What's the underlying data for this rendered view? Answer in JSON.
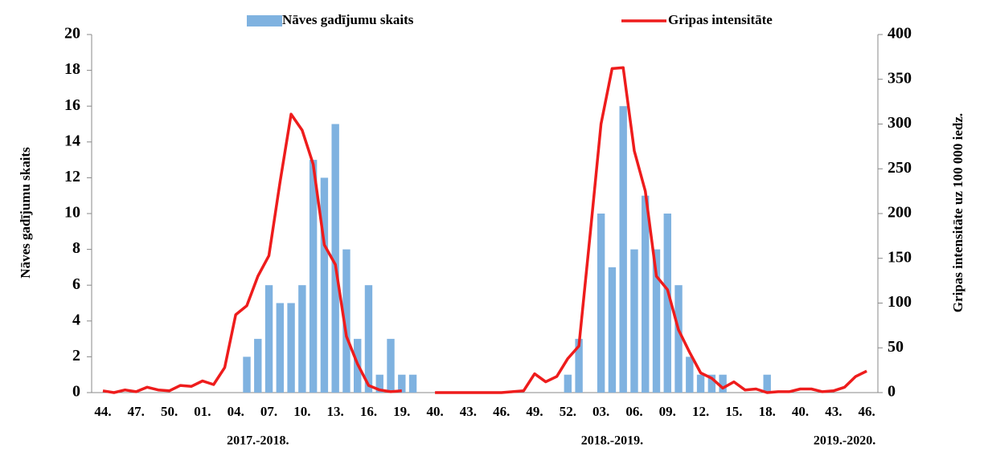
{
  "chart_data": {
    "type": "bar-line",
    "categories": [
      "44.",
      null,
      null,
      "47.",
      null,
      null,
      "50.",
      null,
      null,
      "01.",
      null,
      null,
      "04.",
      null,
      null,
      "07.",
      null,
      null,
      "10.",
      null,
      null,
      "13.",
      null,
      null,
      "16.",
      null,
      null,
      "19.",
      null,
      null,
      "40.",
      null,
      null,
      "43.",
      null,
      null,
      "46.",
      null,
      null,
      "49.",
      null,
      null,
      "52.",
      null,
      null,
      "03.",
      null,
      null,
      "06.",
      null,
      null,
      "09.",
      null,
      null,
      "12.",
      null,
      null,
      "15.",
      null,
      null,
      "18.",
      null,
      null,
      "40.",
      null,
      null,
      "43.",
      null,
      null,
      "46."
    ],
    "series": [
      {
        "name": "Nāves gadījumu skaits",
        "type": "bar",
        "color": "#7fb2e0",
        "axis": "y",
        "values": [
          0,
          0,
          0,
          0,
          0,
          0,
          0,
          0,
          0,
          0,
          0,
          0,
          0,
          2,
          3,
          6,
          5,
          5,
          6,
          13,
          12,
          15,
          8,
          3,
          6,
          1,
          3,
          1,
          1,
          0,
          0,
          0,
          0,
          0,
          0,
          0,
          0,
          0,
          0,
          0,
          0,
          0,
          1,
          3,
          0,
          10,
          7,
          16,
          8,
          11,
          8,
          10,
          6,
          2,
          1,
          1,
          1,
          0,
          0,
          0,
          1,
          0,
          0,
          0,
          0,
          0,
          0,
          0,
          0,
          0
        ]
      },
      {
        "name": "Gripas intensitāte",
        "type": "line",
        "color": "#ee1c1c",
        "axis": "y2",
        "values": [
          2,
          0,
          3,
          1,
          6,
          3,
          2,
          8,
          7,
          13,
          9,
          28,
          87,
          97,
          130,
          153,
          235,
          311,
          293,
          255,
          165,
          143,
          63,
          32,
          8,
          3,
          1,
          2,
          null,
          null,
          0,
          0,
          0,
          0,
          0,
          0,
          0,
          1,
          2,
          21,
          12,
          18,
          38,
          52,
          175,
          300,
          362,
          363,
          270,
          225,
          130,
          115,
          70,
          45,
          22,
          16,
          5,
          12,
          3,
          4,
          0,
          1,
          1,
          4,
          4,
          1,
          2,
          6,
          18,
          24
        ]
      }
    ],
    "ylabel": "Nāves gadījumu skaits",
    "y2label": "Gripas intensitāte uz 100 000 iedz.",
    "ylim": [
      0,
      20
    ],
    "yticks": [
      0,
      2,
      4,
      6,
      8,
      10,
      12,
      14,
      16,
      18,
      20
    ],
    "y2lim": [
      0,
      400
    ],
    "y2ticks": [
      0,
      50,
      100,
      150,
      200,
      250,
      300,
      350,
      400
    ],
    "season_labels": [
      {
        "text": "2017.-2018.",
        "at": 14
      },
      {
        "text": "2018.-2019.",
        "at": 46
      },
      {
        "text": "2019.-2020.",
        "at": 67
      }
    ],
    "legend": "top"
  }
}
